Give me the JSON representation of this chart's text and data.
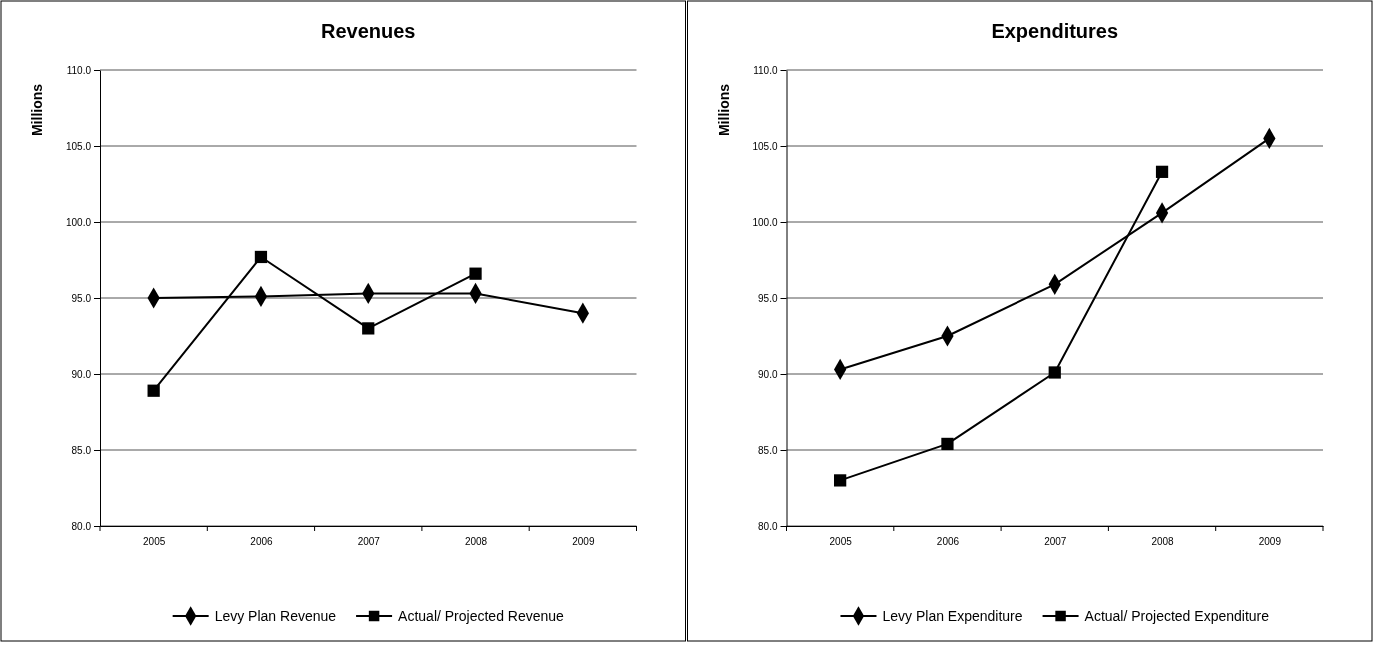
{
  "chart_data": [
    {
      "type": "line",
      "title": "Revenues",
      "ylabel": "Millions",
      "categories": [
        "2005",
        "2006",
        "2007",
        "2008",
        "2009"
      ],
      "ylim": [
        80,
        110
      ],
      "yticks": [
        {
          "value": 80,
          "label": "80.0"
        },
        {
          "value": 85,
          "label": "85.0"
        },
        {
          "value": 90,
          "label": "90.0"
        },
        {
          "value": 95,
          "label": "95.0"
        },
        {
          "value": 100,
          "label": "100.0"
        },
        {
          "value": 105,
          "label": "105.0"
        },
        {
          "value": 110,
          "label": "110.0"
        }
      ],
      "grid": "y",
      "legend": "bottom",
      "series": [
        {
          "name": "Levy Plan Revenue",
          "color": "#000000",
          "marker": "diamond",
          "values": [
            95.0,
            95.1,
            95.3,
            95.3,
            94.0
          ]
        },
        {
          "name": "Actual/ Projected Revenue",
          "color": "#000000",
          "marker": "square",
          "values": [
            88.9,
            97.7,
            93.0,
            96.6,
            null
          ]
        }
      ]
    },
    {
      "type": "line",
      "title": "Expenditures",
      "ylabel": "Millions",
      "categories": [
        "2005",
        "2006",
        "2007",
        "2008",
        "2009"
      ],
      "ylim": [
        80,
        110
      ],
      "yticks": [
        {
          "value": 80,
          "label": "80.0"
        },
        {
          "value": 85,
          "label": "85.0"
        },
        {
          "value": 90,
          "label": "90.0"
        },
        {
          "value": 95,
          "label": "95.0"
        },
        {
          "value": 100,
          "label": "100.0"
        },
        {
          "value": 105,
          "label": "105.0"
        },
        {
          "value": 110,
          "label": "110.0"
        }
      ],
      "grid": "y",
      "legend": "bottom",
      "series": [
        {
          "name": "Levy Plan Expenditure",
          "color": "#000000",
          "marker": "diamond",
          "values": [
            90.3,
            92.5,
            95.9,
            100.6,
            105.5
          ]
        },
        {
          "name": "Actual/ Projected Expenditure",
          "color": "#000000",
          "marker": "square",
          "values": [
            83.0,
            85.4,
            90.1,
            103.3,
            null
          ]
        }
      ]
    }
  ]
}
